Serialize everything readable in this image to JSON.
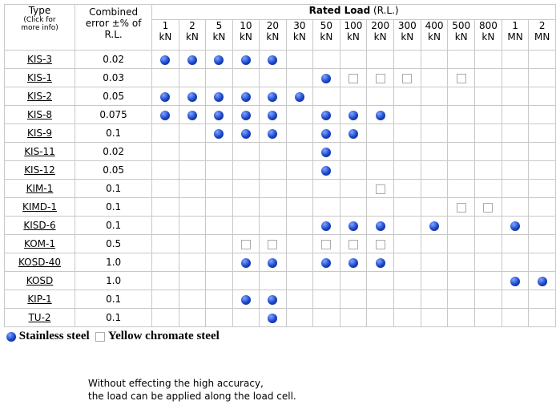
{
  "header": {
    "type": "Type",
    "type_note": "(Click for more info)",
    "error": "Combined error ±% of R.L.",
    "rated": "Rated Load",
    "rated_note": "(R.L.)"
  },
  "columns": [
    {
      "n": "1",
      "u": "kN"
    },
    {
      "n": "2",
      "u": "kN"
    },
    {
      "n": "5",
      "u": "kN"
    },
    {
      "n": "10",
      "u": "kN"
    },
    {
      "n": "20",
      "u": "kN"
    },
    {
      "n": "30",
      "u": "kN"
    },
    {
      "n": "50",
      "u": "kN"
    },
    {
      "n": "100",
      "u": "kN"
    },
    {
      "n": "200",
      "u": "kN"
    },
    {
      "n": "300",
      "u": "kN"
    },
    {
      "n": "400",
      "u": "kN"
    },
    {
      "n": "500",
      "u": "kN"
    },
    {
      "n": "800",
      "u": "kN"
    },
    {
      "n": "1",
      "u": "MN"
    },
    {
      "n": "2",
      "u": "MN"
    }
  ],
  "rows": [
    {
      "type": "KIS-3",
      "error": "0.02",
      "marks": [
        0,
        0,
        0,
        0,
        0,
        null,
        null,
        null,
        null,
        null,
        null,
        null,
        null,
        null,
        null
      ]
    },
    {
      "type": "KIS-1",
      "error": "0.03",
      "marks": [
        null,
        null,
        null,
        null,
        null,
        null,
        0,
        1,
        1,
        1,
        null,
        1,
        null,
        null,
        null
      ]
    },
    {
      "type": "KIS-2",
      "error": "0.05",
      "marks": [
        0,
        0,
        0,
        0,
        0,
        0,
        null,
        null,
        null,
        null,
        null,
        null,
        null,
        null,
        null
      ]
    },
    {
      "type": "KIS-8",
      "error": "0.075",
      "marks": [
        0,
        0,
        0,
        0,
        0,
        null,
        0,
        0,
        0,
        null,
        null,
        null,
        null,
        null,
        null
      ]
    },
    {
      "type": "KIS-9",
      "error": "0.1",
      "marks": [
        null,
        null,
        0,
        0,
        0,
        null,
        0,
        0,
        null,
        null,
        null,
        null,
        null,
        null,
        null
      ]
    },
    {
      "type": "KIS-11",
      "error": "0.02",
      "marks": [
        null,
        null,
        null,
        null,
        null,
        null,
        0,
        null,
        null,
        null,
        null,
        null,
        null,
        null,
        null
      ]
    },
    {
      "type": "KIS-12",
      "error": "0.05",
      "marks": [
        null,
        null,
        null,
        null,
        null,
        null,
        0,
        null,
        null,
        null,
        null,
        null,
        null,
        null,
        null
      ]
    },
    {
      "type": "KIM-1",
      "error": "0.1",
      "marks": [
        null,
        null,
        null,
        null,
        null,
        null,
        null,
        null,
        1,
        null,
        null,
        null,
        null,
        null,
        null
      ]
    },
    {
      "type": "KIMD-1",
      "error": "0.1",
      "marks": [
        null,
        null,
        null,
        null,
        null,
        null,
        null,
        null,
        null,
        null,
        null,
        1,
        1,
        null,
        null
      ]
    },
    {
      "type": "KISD-6",
      "error": "0.1",
      "marks": [
        null,
        null,
        null,
        null,
        null,
        null,
        0,
        0,
        0,
        null,
        0,
        null,
        null,
        0,
        null
      ]
    },
    {
      "type": "KOM-1",
      "error": "0.5",
      "marks": [
        null,
        null,
        null,
        1,
        1,
        null,
        1,
        1,
        1,
        null,
        null,
        null,
        null,
        null,
        null
      ]
    },
    {
      "type": "KOSD-40",
      "error": "1.0",
      "marks": [
        null,
        null,
        null,
        0,
        0,
        null,
        0,
        0,
        0,
        null,
        null,
        null,
        null,
        null,
        null
      ]
    },
    {
      "type": "KOSD",
      "error": "1.0",
      "marks": [
        null,
        null,
        null,
        null,
        null,
        null,
        null,
        null,
        null,
        null,
        null,
        null,
        null,
        0,
        0
      ]
    },
    {
      "type": "KIP-1",
      "error": "0.1",
      "marks": [
        null,
        null,
        null,
        0,
        0,
        null,
        null,
        null,
        null,
        null,
        null,
        null,
        null,
        null,
        null
      ]
    },
    {
      "type": "TU-2",
      "error": "0.1",
      "marks": [
        null,
        null,
        null,
        null,
        0,
        null,
        null,
        null,
        null,
        null,
        null,
        null,
        null,
        null,
        null
      ]
    }
  ],
  "legend": [
    "Stainless steel",
    "Yellow chromate steel"
  ],
  "footer": [
    "Without effecting the high accuracy,",
    "the load can be applied along the load cell."
  ]
}
